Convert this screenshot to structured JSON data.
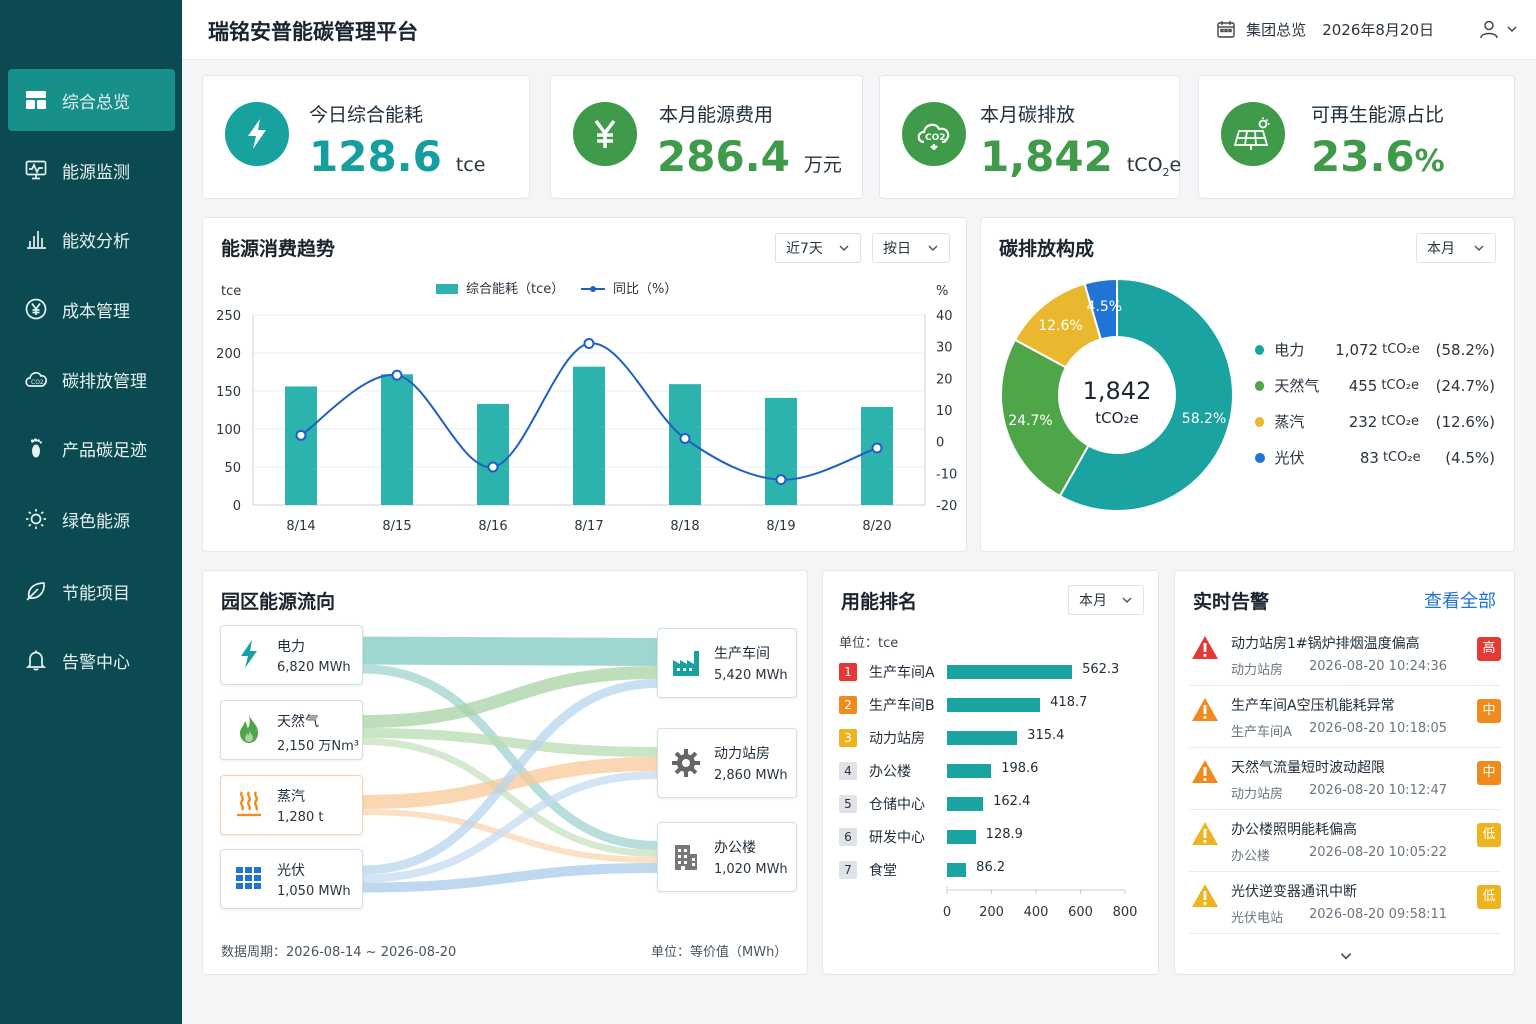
{
  "app": {
    "title": "瑞铭安普能碳管理平台"
  },
  "header": {
    "scope": "集团总览",
    "date": "2026年8月20日",
    "calendar_icon": "calendar-icon",
    "user_icon": "user-icon"
  },
  "sidebar": {
    "items": [
      {
        "label": "综合总览",
        "icon": "dashboard-icon",
        "active": true
      },
      {
        "label": "能源监测",
        "icon": "monitor-icon"
      },
      {
        "label": "能效分析",
        "icon": "bar-chart-icon"
      },
      {
        "label": "成本管理",
        "icon": "yen-icon"
      },
      {
        "label": "碳排放管理",
        "icon": "co2-cloud-icon"
      },
      {
        "label": "产品碳足迹",
        "icon": "footprint-icon"
      },
      {
        "label": "绿色能源",
        "icon": "sun-icon"
      },
      {
        "label": "节能项目",
        "icon": "leaf-icon"
      },
      {
        "label": "告警中心",
        "icon": "bell-icon"
      }
    ]
  },
  "kpis": [
    {
      "label": "今日综合能耗",
      "value": "128.6",
      "unit": "tce",
      "icon": "lightning-icon",
      "color": "#159e9e"
    },
    {
      "label": "本月能源费用",
      "value": "286.4",
      "unit": "万元",
      "icon": "yen-icon",
      "color": "#3f9a4a"
    },
    {
      "label": "本月碳排放",
      "value": "1,842",
      "unit_main": "tCO",
      "unit_sub": "2",
      "unit_tail": "e",
      "icon": "co2-cloud-icon",
      "color": "#3f9a4a"
    },
    {
      "label": "可再生能源占比",
      "value": "23.6",
      "unit": "%",
      "icon": "solar-panel-icon",
      "color": "#3f9a4a"
    }
  ],
  "trend": {
    "title": "能源消费趋势",
    "filters": [
      "近7天",
      "按日"
    ],
    "legend_bar": "综合能耗（tce）",
    "legend_line": "同比（%）",
    "left_unit": "tce",
    "right_unit": "%"
  },
  "carbon": {
    "title": "碳排放构成",
    "filter": "本月",
    "center_value": "1,842",
    "center_unit": "tCO₂e",
    "unit_label": "tCO₂e",
    "items": [
      {
        "name": "电力",
        "value": "1,072",
        "pct": "(58.2%)",
        "slice_label": "58.2%",
        "color": "#1aa3a0"
      },
      {
        "name": "天然气",
        "value": "455",
        "pct": "(24.7%)",
        "slice_label": "24.7%",
        "color": "#4fa649"
      },
      {
        "name": "蒸汽",
        "value": "232",
        "pct": "(12.6%)",
        "slice_label": "12.6%",
        "color": "#e9b82f"
      },
      {
        "name": "光伏",
        "value": "83",
        "pct": "(4.5%)",
        "slice_label": "4.5%",
        "color": "#1f74d6"
      }
    ]
  },
  "flow": {
    "title": "园区能源流向",
    "sources": [
      {
        "name": "电力",
        "value": "6,820 MWh",
        "icon": "lightning-icon"
      },
      {
        "name": "天然气",
        "value": "2,150 万Nm³",
        "icon": "flame-icon"
      },
      {
        "name": "蒸汽",
        "value": "1,280 t",
        "icon": "steam-icon"
      },
      {
        "name": "光伏",
        "value": "1,050 MWh",
        "icon": "solar-panel-icon"
      }
    ],
    "targets": [
      {
        "name": "生产车间",
        "value": "5,420 MWh",
        "icon": "factory-icon"
      },
      {
        "name": "动力站房",
        "value": "2,860 MWh",
        "icon": "gear-icon"
      },
      {
        "name": "办公楼",
        "value": "1,020 MWh",
        "icon": "building-icon"
      }
    ],
    "period": "数据周期：2026-08-14 ~ 2026-08-20",
    "unit": "单位：等价值（MWh）"
  },
  "ranking": {
    "title": "用能排名",
    "filter": "本月",
    "unit": "单位：tce",
    "rows": [
      {
        "rank": "1",
        "name": "生产车间A",
        "value": 562.3,
        "label": "562.3"
      },
      {
        "rank": "2",
        "name": "生产车间B",
        "value": 418.7,
        "label": "418.7"
      },
      {
        "rank": "3",
        "name": "动力站房",
        "value": 315.4,
        "label": "315.4"
      },
      {
        "rank": "4",
        "name": "办公楼",
        "value": 198.6,
        "label": "198.6"
      },
      {
        "rank": "5",
        "name": "仓储中心",
        "value": 162.4,
        "label": "162.4"
      },
      {
        "rank": "6",
        "name": "研发中心",
        "value": 128.9,
        "label": "128.9"
      },
      {
        "rank": "7",
        "name": "食堂",
        "value": 86.2,
        "label": "86.2"
      }
    ],
    "ticks": [
      "0",
      "200",
      "400",
      "600",
      "800"
    ]
  },
  "alerts": {
    "title": "实时告警",
    "view_all": "查看全部",
    "items": [
      {
        "title": "动力站房1#锅炉排烟温度偏高",
        "source": "动力站房",
        "time": "2026-08-20 10:24:36",
        "level": "高",
        "color": "#e53935"
      },
      {
        "title": "生产车间A空压机能耗异常",
        "source": "生产车间A",
        "time": "2026-08-20 10:18:05",
        "level": "中",
        "color": "#f08a1c"
      },
      {
        "title": "天然气流量短时波动超限",
        "source": "动力站房",
        "time": "2026-08-20 10:12:47",
        "level": "中",
        "color": "#f08a1c"
      },
      {
        "title": "办公楼照明能耗偏高",
        "source": "办公楼",
        "time": "2026-08-20 10:05:22",
        "level": "低",
        "color": "#eeb41f"
      },
      {
        "title": "光伏逆变器通讯中断",
        "source": "光伏电站",
        "time": "2026-08-20 09:58:11",
        "level": "低",
        "color": "#eeb41f"
      }
    ]
  },
  "chart_data": [
    {
      "type": "bar",
      "title": "能源消费趋势",
      "categories": [
        "8/14",
        "8/15",
        "8/16",
        "8/17",
        "8/18",
        "8/19",
        "8/20"
      ],
      "series": [
        {
          "name": "综合能耗（tce）",
          "type": "bar",
          "axis": "left",
          "values": [
            156,
            172,
            133,
            182,
            159,
            141,
            129
          ],
          "color": "#2db3ae"
        },
        {
          "name": "同比（%）",
          "type": "line",
          "axis": "right",
          "values": [
            2,
            21,
            -8,
            31,
            1,
            -12,
            -2
          ],
          "color": "#1f5fc4"
        }
      ],
      "ylim_left": [
        0,
        250
      ],
      "ylim_right": [
        -20,
        40
      ],
      "yticks_left": [
        "0",
        "50",
        "100",
        "150",
        "200",
        "250"
      ],
      "yticks_right": [
        "-20",
        "-10",
        "0",
        "10",
        "20",
        "30",
        "40"
      ],
      "grid": true,
      "legend": "top-center"
    },
    {
      "type": "pie",
      "title": "碳排放构成",
      "categories": [
        "电力",
        "天然气",
        "蒸汽",
        "光伏"
      ],
      "values": [
        1072,
        455,
        232,
        83
      ]
    },
    {
      "type": "bar",
      "title": "用能排名",
      "orientation": "horizontal",
      "categories": [
        "生产车间A",
        "生产车间B",
        "动力站房",
        "办公楼",
        "仓储中心",
        "研发中心",
        "食堂"
      ],
      "values": [
        562.3,
        418.7,
        315.4,
        198.6,
        162.4,
        128.9,
        86.2
      ],
      "xlim": [
        0,
        800
      ]
    }
  ]
}
